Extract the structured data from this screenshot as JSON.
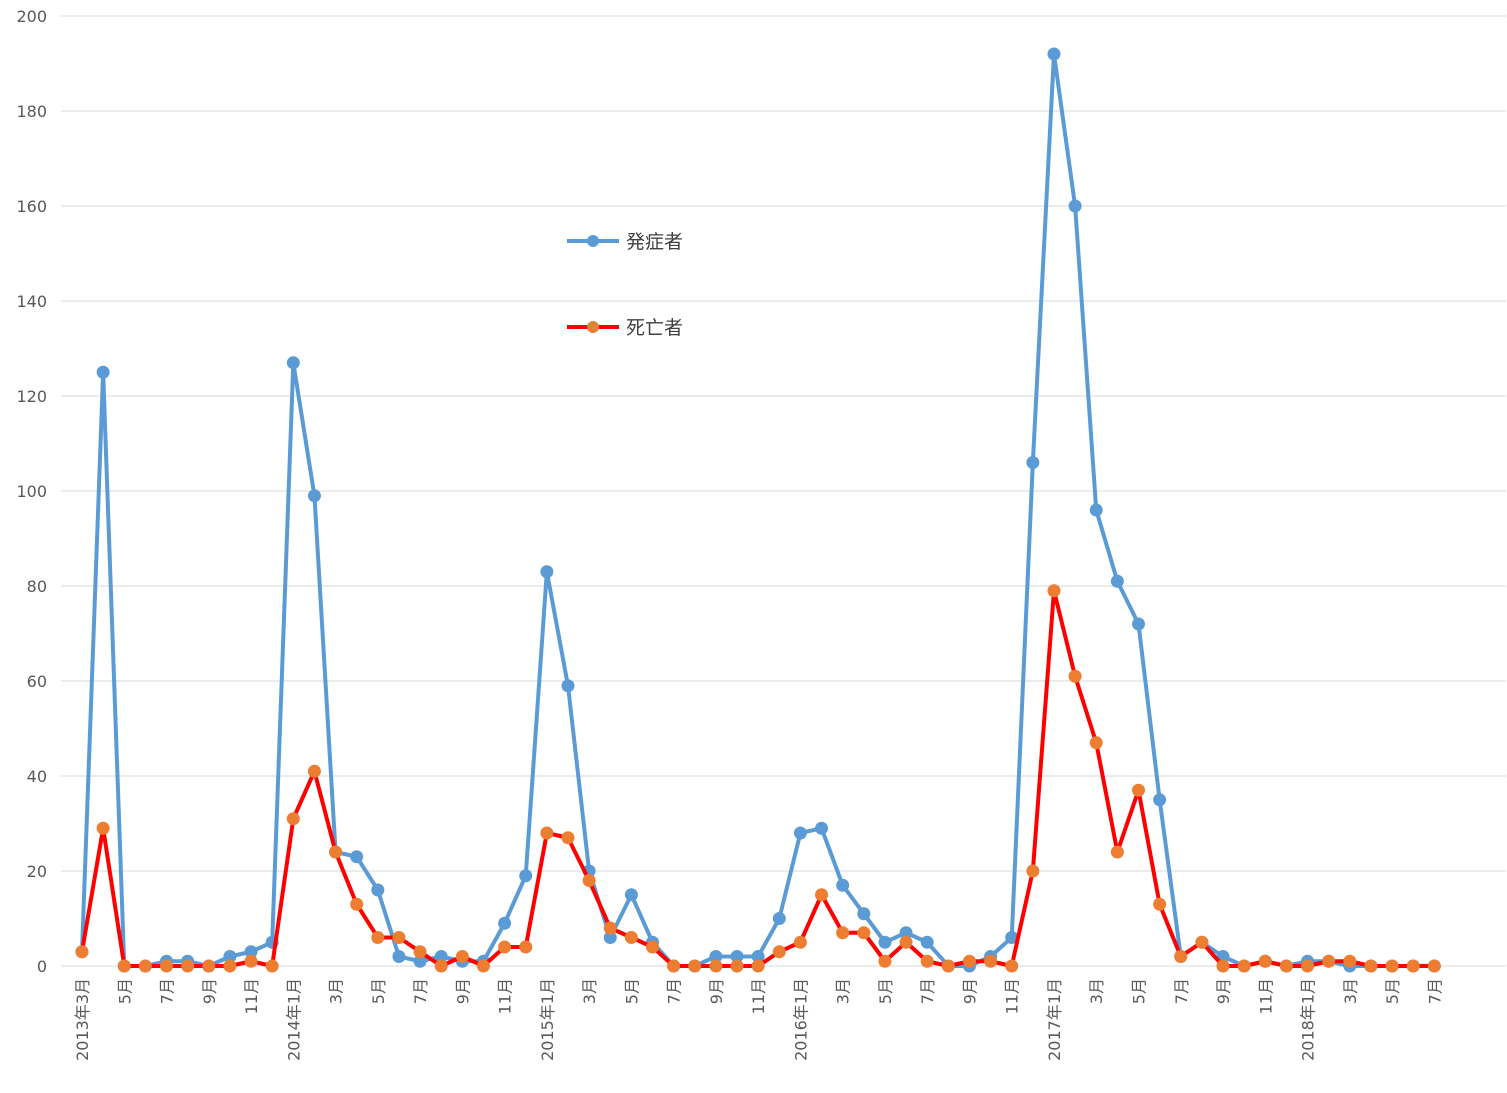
{
  "chart_data": {
    "type": "line",
    "title": "",
    "xlabel": "",
    "ylabel": "",
    "ylim": [
      0,
      200
    ],
    "yticks": [
      0,
      20,
      40,
      60,
      80,
      100,
      120,
      140,
      160,
      180,
      200
    ],
    "grid": true,
    "legend_position": "upper-center",
    "x": [
      "2013年3月",
      "4月",
      "5月",
      "6月",
      "7月",
      "8月",
      "9月",
      "10月",
      "11月",
      "12月",
      "2014年1月",
      "2月",
      "3月",
      "4月",
      "5月",
      "6月",
      "7月",
      "8月",
      "9月",
      "10月",
      "11月",
      "12月",
      "2015年1月",
      "2月",
      "3月",
      "4月",
      "5月",
      "6月",
      "7月",
      "8月",
      "9月",
      "10月",
      "11月",
      "12月",
      "2016年1月",
      "2月",
      "3月",
      "4月",
      "5月",
      "6月",
      "7月",
      "8月",
      "9月",
      "10月",
      "11月",
      "12月",
      "2017年1月",
      "2月",
      "3月",
      "4月",
      "5月",
      "6月",
      "7月",
      "8月",
      "9月",
      "10月",
      "11月",
      "12月",
      "2018年1月",
      "2月",
      "3月",
      "4月",
      "5月",
      "6月",
      "7月"
    ],
    "x_tick_labels": [
      "2013年3月",
      "",
      "5月",
      "",
      "7月",
      "",
      "9月",
      "",
      "11月",
      "",
      "2014年1月",
      "",
      "3月",
      "",
      "5月",
      "",
      "7月",
      "",
      "9月",
      "",
      "11月",
      "",
      "2015年1月",
      "",
      "3月",
      "",
      "5月",
      "",
      "7月",
      "",
      "9月",
      "",
      "11月",
      "",
      "2016年1月",
      "",
      "3月",
      "",
      "5月",
      "",
      "7月",
      "",
      "9月",
      "",
      "11月",
      "",
      "2017年1月",
      "",
      "3月",
      "",
      "5月",
      "",
      "7月",
      "",
      "9月",
      "",
      "11月",
      "",
      "2018年1月",
      "",
      "3月",
      "",
      "5月",
      "",
      "7月"
    ],
    "series": [
      {
        "name": "発症者",
        "color": "#5b9bd5",
        "marker_color": "#5b9bd5",
        "values": [
          3,
          125,
          0,
          0,
          1,
          1,
          0,
          2,
          3,
          5,
          127,
          99,
          24,
          23,
          16,
          2,
          1,
          2,
          1,
          1,
          9,
          19,
          83,
          59,
          20,
          6,
          15,
          5,
          0,
          0,
          2,
          2,
          2,
          10,
          28,
          29,
          17,
          11,
          5,
          7,
          5,
          0,
          0,
          2,
          6,
          106,
          192,
          160,
          96,
          81,
          72,
          35,
          2,
          5,
          2,
          0,
          1,
          0,
          1,
          1,
          0,
          0,
          0,
          0,
          0
        ]
      },
      {
        "name": "死亡者",
        "color": "#ff0000",
        "marker_color": "#ed7d31",
        "values": [
          3,
          29,
          0,
          0,
          0,
          0,
          0,
          0,
          1,
          0,
          31,
          41,
          24,
          13,
          6,
          6,
          3,
          0,
          2,
          0,
          4,
          4,
          28,
          27,
          18,
          8,
          6,
          4,
          0,
          0,
          0,
          0,
          0,
          3,
          5,
          15,
          7,
          7,
          1,
          5,
          1,
          0,
          1,
          1,
          0,
          20,
          79,
          61,
          47,
          24,
          37,
          13,
          2,
          5,
          0,
          0,
          1,
          0,
          0,
          1,
          1,
          0,
          0,
          0,
          0
        ]
      }
    ]
  }
}
